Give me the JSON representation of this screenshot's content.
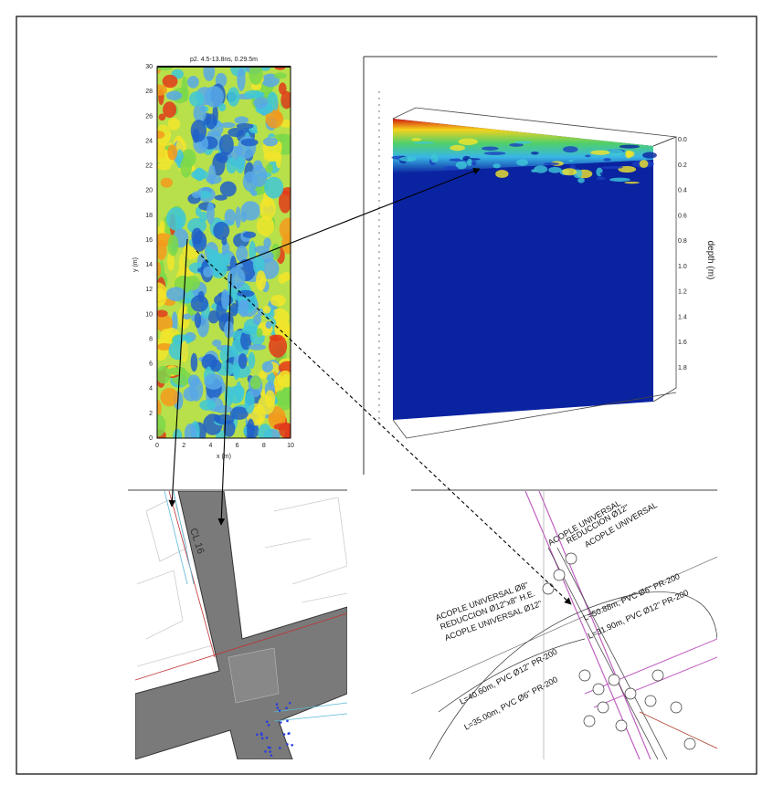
{
  "gpr_slice": {
    "title": "p2. 4.5-13.8ns, 0.29.5m",
    "y_label": "y (m)",
    "x_label": "x (m)",
    "y_ticks": [
      "30",
      "28",
      "26",
      "24",
      "22",
      "20",
      "18",
      "16",
      "14",
      "12",
      "10",
      "8",
      "6",
      "4",
      "2",
      "0"
    ],
    "x_ticks": [
      "0",
      "2",
      "4",
      "6",
      "8",
      "10"
    ]
  },
  "block_3d": {
    "depth_label": "depth (m)",
    "depth_ticks": [
      "0.0",
      "0.2",
      "0.4",
      "0.6",
      "0.8",
      "1.0",
      "1.2",
      "1.4",
      "1.6",
      "1.8"
    ]
  },
  "street_map": {
    "street_label": "CL 16"
  },
  "pipe_map": {
    "labels": [
      "ACOPLE UNIVERSAL Ø8\"",
      "REDUCCION Ø12\"x8\" H.E.",
      "ACOPLE UNIVERSAL Ø12\"",
      "ACOPLE UNIVERSAL",
      "REDUCCION Ø12\"",
      "ACOPLE UNIVERSAL",
      "L=50.88m, PVC Ø6\" PR-200",
      "L=31.90m, PVC Ø12\" PR-200",
      "L=40.60m, PVC Ø12\" PR-200",
      "L=35.00m, PVC Ø6\" PR-200"
    ]
  }
}
